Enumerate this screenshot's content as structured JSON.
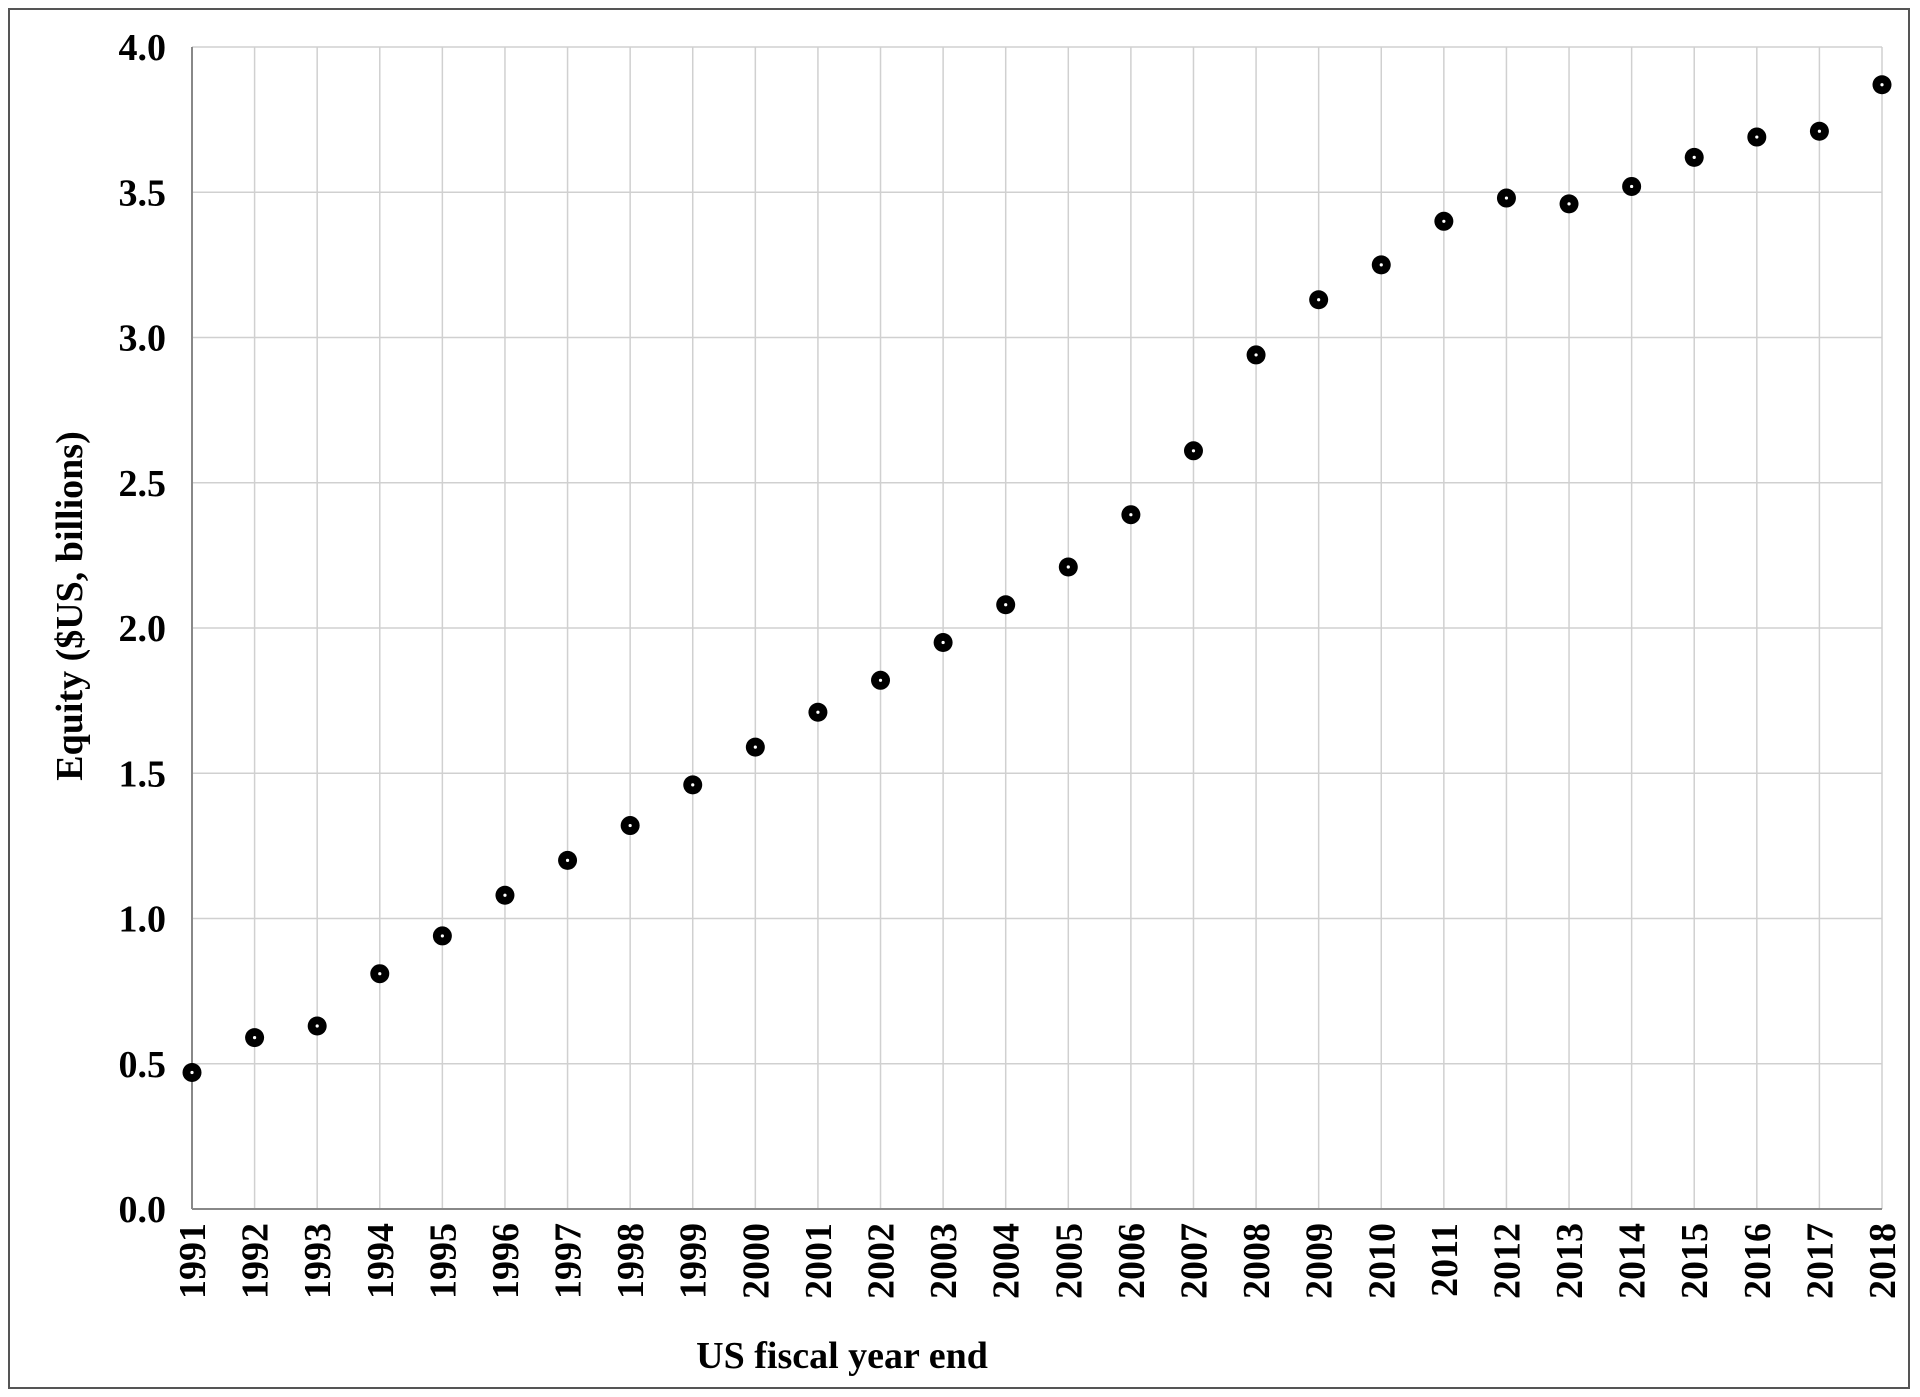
{
  "chart_data": {
    "type": "scatter",
    "title": "",
    "xlabel": "US fiscal year end",
    "ylabel": "Equity ($US, billions)",
    "x": [
      "1991",
      "1992",
      "1993",
      "1994",
      "1995",
      "1996",
      "1997",
      "1998",
      "1999",
      "2000",
      "2001",
      "2002",
      "2003",
      "2004",
      "2005",
      "2006",
      "2007",
      "2008",
      "2009",
      "2010",
      "2011",
      "2012",
      "2013",
      "2014",
      "2015",
      "2016",
      "2017",
      "2018"
    ],
    "values": [
      0.47,
      0.59,
      0.63,
      0.81,
      0.94,
      1.08,
      1.2,
      1.32,
      1.46,
      1.59,
      1.71,
      1.82,
      1.95,
      2.08,
      2.21,
      2.39,
      2.61,
      2.94,
      3.13,
      3.25,
      3.4,
      3.48,
      3.46,
      3.52,
      3.62,
      3.69,
      3.71,
      3.87
    ],
    "ylim": [
      0,
      4
    ],
    "yticks": [
      "0.0",
      "0.5",
      "1.0",
      "1.5",
      "2.0",
      "2.5",
      "3.0",
      "3.5",
      "4.0"
    ],
    "grid": true,
    "legend": "none",
    "colors": {
      "marker": "#000000",
      "marker_center": "#ffffff",
      "grid": "#d0d0d0",
      "axis": "#888888"
    }
  }
}
